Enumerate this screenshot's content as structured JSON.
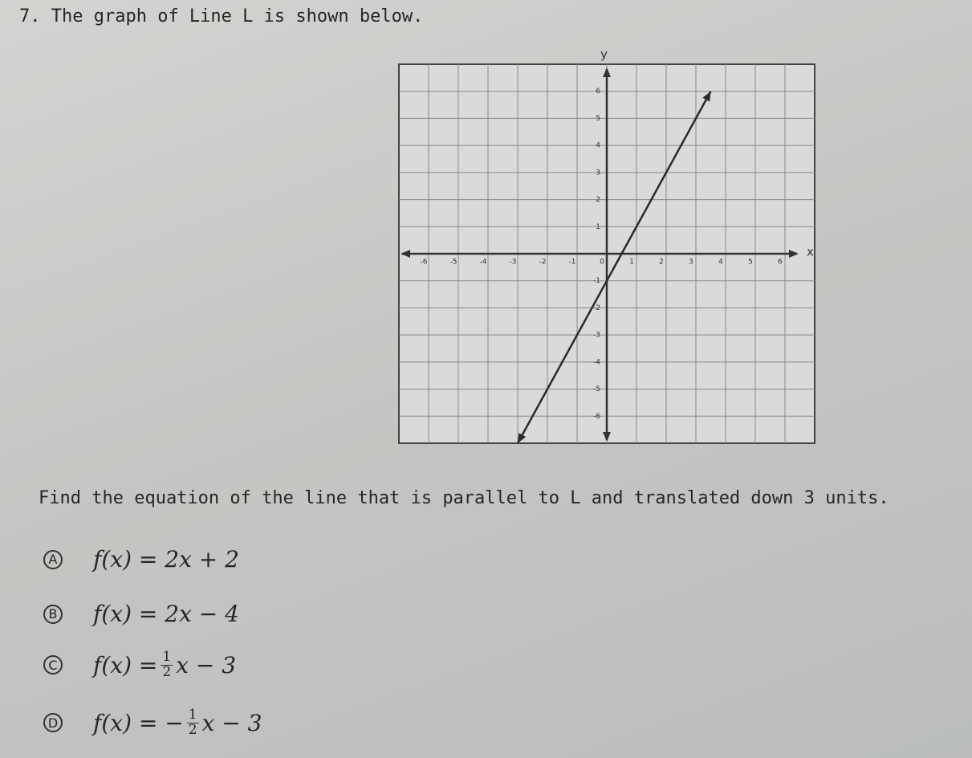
{
  "question": {
    "number": "7.",
    "text": "The graph of Line L is shown below."
  },
  "graph": {
    "x_label": "x",
    "y_label": "y",
    "xlim": [
      -7,
      7
    ],
    "ylim": [
      -7,
      7
    ],
    "xticks": [
      -6,
      -5,
      -4,
      -3,
      -2,
      -1,
      0,
      1,
      2,
      3,
      4,
      5,
      6
    ],
    "yticks": [
      -6,
      -5,
      -4,
      -3,
      -2,
      -1,
      1,
      2,
      3,
      4,
      5,
      6
    ],
    "line": {
      "x": [
        -3,
        3.5
      ],
      "y": [
        -7,
        6
      ]
    }
  },
  "prompt": "Find the equation of the line that is parallel to L and translated down 3 units.",
  "choices": [
    {
      "letter": "A",
      "before": "f(x) = 2x + 2"
    },
    {
      "letter": "B",
      "before": "f(x) = 2x − 4"
    },
    {
      "letter": "C",
      "before": "f(x) = ",
      "num": "1",
      "den": "2",
      "after": "x − 3"
    },
    {
      "letter": "D",
      "before": "f(x) = −",
      "num": "1",
      "den": "2",
      "after": "x − 3"
    }
  ]
}
